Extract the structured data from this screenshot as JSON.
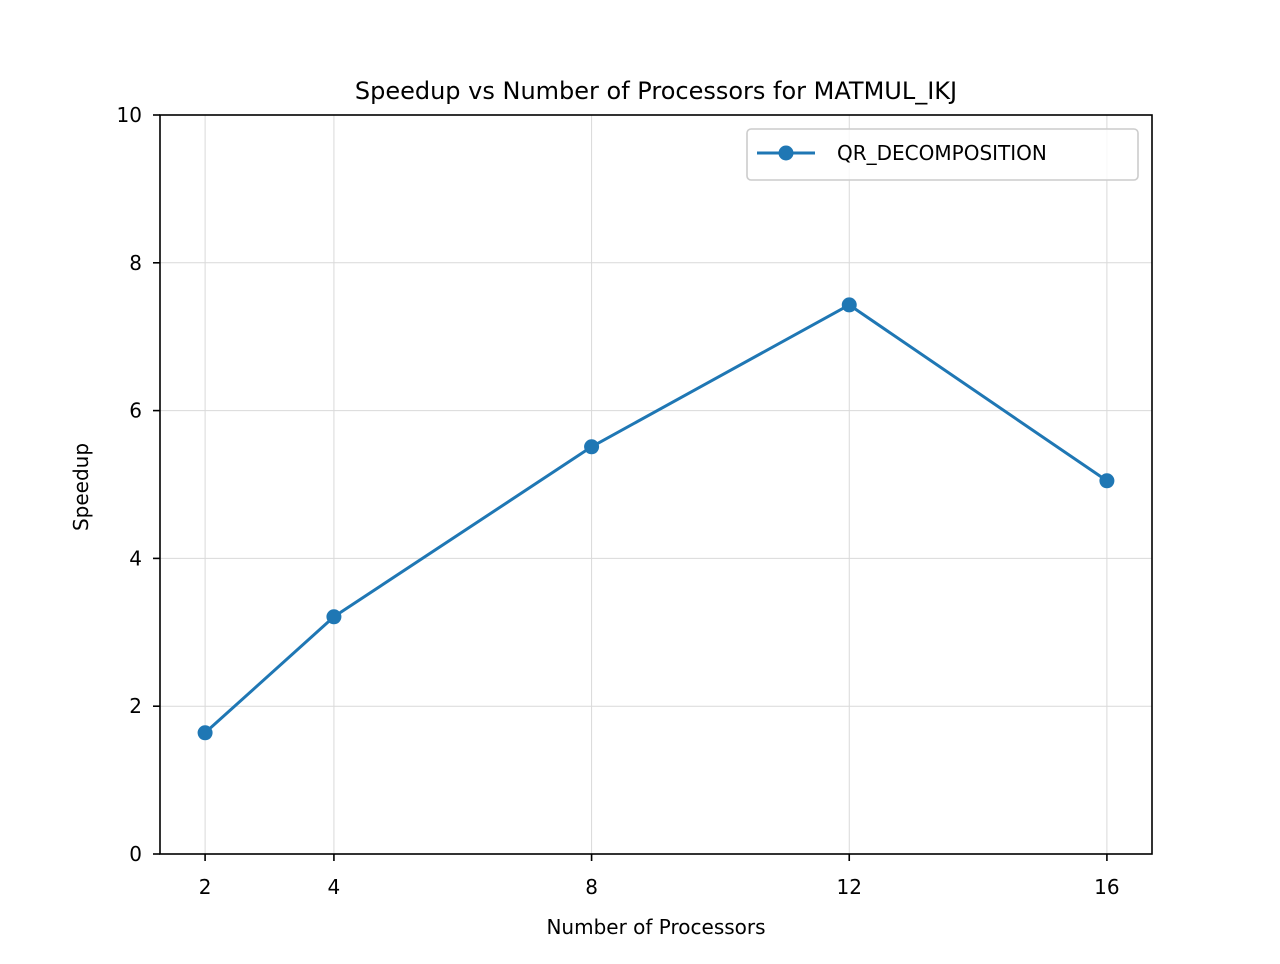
{
  "chart_data": {
    "type": "line",
    "title": "Speedup vs Number of Processors for MATMUL_IKJ",
    "xlabel": "Number of Processors",
    "ylabel": "Speedup",
    "x": [
      2,
      4,
      8,
      12,
      16
    ],
    "xticks": [
      2,
      4,
      8,
      12,
      16
    ],
    "yticks": [
      0,
      2,
      4,
      6,
      8,
      10
    ],
    "xlim": [
      1.3,
      16.7
    ],
    "ylim": [
      0,
      10
    ],
    "grid": true,
    "legend_position": "upper right",
    "series": [
      {
        "name": "QR_DECOMPOSITION",
        "color": "#1f77b4",
        "marker": "circle",
        "values": [
          1.64,
          3.21,
          5.51,
          7.43,
          5.05
        ]
      }
    ]
  }
}
